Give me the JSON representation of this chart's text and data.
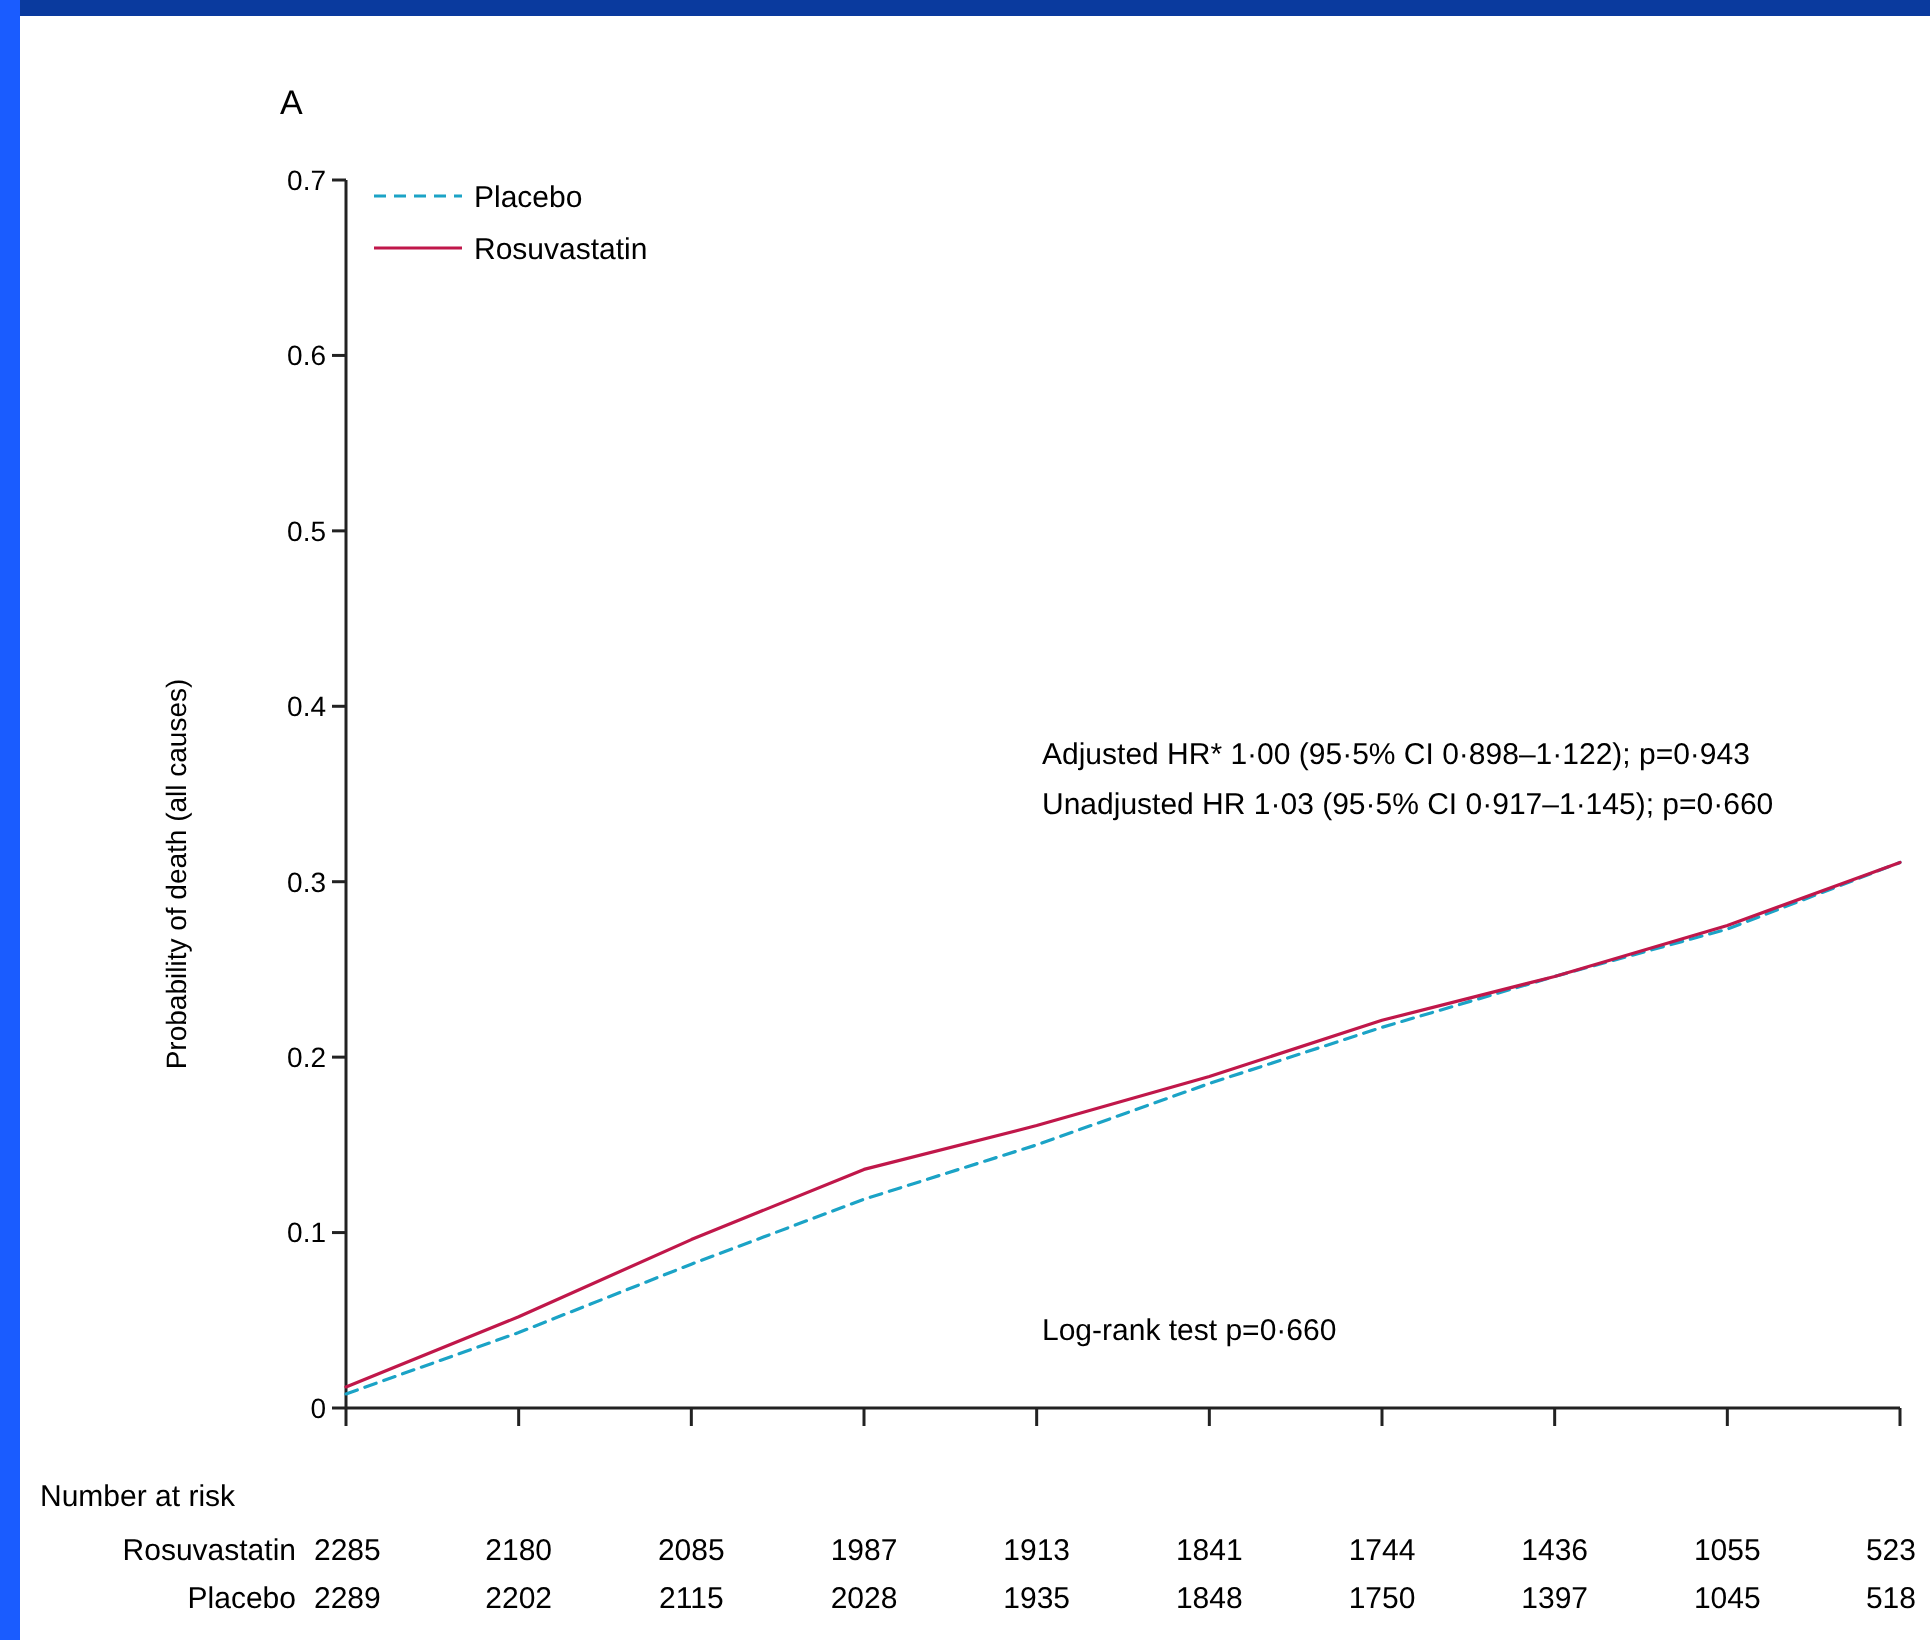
{
  "chart_data": {
    "type": "line",
    "title": "A",
    "ylabel": "Probability of death (all causes)",
    "categories": [
      null,
      null,
      null,
      null,
      null,
      null,
      null,
      null,
      null,
      null
    ],
    "series": [
      {
        "name": "Placebo",
        "color": "#1ba3c6",
        "line_style": "dashed",
        "values": [
          0.008,
          0.043,
          0.082,
          0.119,
          0.15,
          0.185,
          0.217,
          0.246,
          0.273,
          0.311
        ]
      },
      {
        "name": "Rosuvastatin",
        "color": "#c0174a",
        "line_style": "solid",
        "values": [
          0.012,
          0.052,
          0.096,
          0.136,
          0.161,
          0.189,
          0.221,
          0.246,
          0.275,
          0.311
        ]
      }
    ],
    "ylim": [
      0,
      0.7
    ],
    "yticks": [
      0,
      0.1,
      0.2,
      0.3,
      0.4,
      0.5,
      0.6,
      0.7
    ],
    "tick_labels": "y",
    "legend": "top left",
    "grid": false,
    "annotations": [
      "Adjusted HR* 1·00 (95·5% CI 0·898–1·122); p=0·943",
      "Unadjusted HR 1·03 (95·5% CI 0·917–1·145); p=0·660",
      "Log-rank test p=0·660",
      "Number at risk",
      "Rosuvastatin",
      "2285",
      "2180",
      "2085",
      "1987",
      "1913",
      "1841",
      "1744",
      "1436",
      "1055",
      "523",
      "Placebo",
      "2289",
      "2202",
      "2115",
      "2028",
      "1935",
      "1848",
      "1750",
      "1397",
      "1045",
      "518"
    ]
  }
}
